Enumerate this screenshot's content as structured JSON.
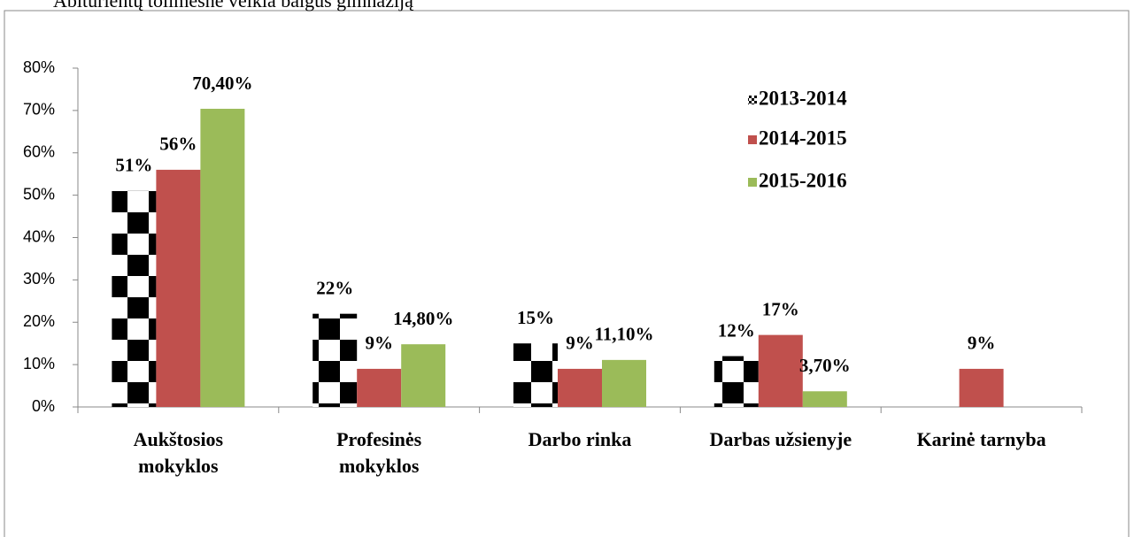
{
  "chart_data": {
    "type": "bar",
    "title": "Abiturientų tolimesnė veikla baigus gimnaziją",
    "categories": [
      "Aukštosios mokyklos",
      "Profesinės mokyklos",
      "Darbo rinka",
      "Darbas užsienyje",
      "Karinė tarnyba"
    ],
    "series": [
      {
        "name": "2013-2014",
        "color": "#000000",
        "pattern": "checker",
        "values": [
          51,
          22,
          15,
          12,
          null
        ],
        "value_labels": [
          "51%",
          "22%",
          "15%",
          "12%",
          null
        ]
      },
      {
        "name": "2014-2015",
        "color": "#c0504d",
        "values": [
          56,
          9,
          9,
          17,
          9
        ],
        "value_labels": [
          "56%",
          "9%",
          "9%",
          "17%",
          "9%"
        ]
      },
      {
        "name": "2015-2016",
        "color": "#9bbb59",
        "values": [
          70.4,
          14.8,
          11.1,
          3.7,
          null
        ],
        "value_labels": [
          "70,40%",
          "14,80%",
          "11,10%",
          "3,70%",
          null
        ]
      }
    ],
    "ylim": [
      0,
      80
    ],
    "yticks": [
      {
        "value": 0,
        "label": "0%"
      },
      {
        "value": 10,
        "label": "10%"
      },
      {
        "value": 20,
        "label": "20%"
      },
      {
        "value": 30,
        "label": "30%"
      },
      {
        "value": 40,
        "label": "40%"
      },
      {
        "value": 50,
        "label": "50%"
      },
      {
        "value": 60,
        "label": "60%"
      },
      {
        "value": 70,
        "label": "70%"
      },
      {
        "value": 80,
        "label": "80%"
      }
    ],
    "grid": false,
    "legend": "upper right"
  }
}
